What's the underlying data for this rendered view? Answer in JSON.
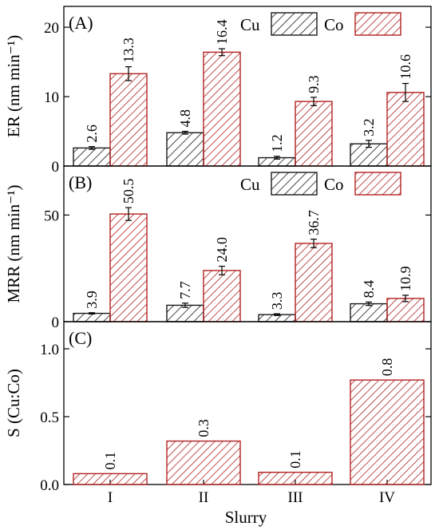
{
  "chart_data": {
    "type": "bar",
    "categories": [
      "I",
      "II",
      "III",
      "IV"
    ],
    "xlabel": "Slurry",
    "colors": {
      "cu": "#1a1a1a",
      "co": "#b22222"
    },
    "panels": [
      {
        "label": "(A)",
        "ylabel": "ER (nm min⁻¹)",
        "ylim": [
          0,
          23
        ],
        "yticks": [
          "0",
          "10",
          "20"
        ],
        "legend": [
          "Cu",
          "Co"
        ],
        "legend_position": "top-right",
        "series": [
          {
            "name": "Cu",
            "values": [
              2.6,
              4.8,
              1.2,
              3.2
            ],
            "errors": [
              0.2,
              0.2,
              0.2,
              0.5
            ],
            "labels": [
              "2.6",
              "4.8",
              "1.2",
              "3.2"
            ]
          },
          {
            "name": "Co",
            "values": [
              13.3,
              16.4,
              9.3,
              10.6
            ],
            "errors": [
              1.0,
              0.5,
              0.6,
              1.3
            ],
            "labels": [
              "13.3",
              "16.4",
              "9.3",
              "10.6"
            ]
          }
        ]
      },
      {
        "label": "(B)",
        "ylabel": "MRR (nm min⁻¹)",
        "ylim": [
          0,
          73
        ],
        "yticks": [
          "0",
          "50"
        ],
        "legend": [
          "Cu",
          "Co"
        ],
        "legend_position": "top-right",
        "series": [
          {
            "name": "Cu",
            "values": [
              3.9,
              7.7,
              3.3,
              8.4
            ],
            "errors": [
              0.3,
              1.0,
              0.4,
              0.8
            ],
            "labels": [
              "3.9",
              "7.7",
              "3.3",
              "8.4"
            ]
          },
          {
            "name": "Co",
            "values": [
              50.5,
              24.0,
              36.7,
              10.9
            ],
            "errors": [
              3.0,
              2.0,
              2.0,
              1.5
            ],
            "labels": [
              "50.5",
              "24.0",
              "36.7",
              "10.9"
            ]
          }
        ]
      },
      {
        "label": "(C)",
        "ylabel": "S (Cu:Co)",
        "ylim": [
          0,
          1.2
        ],
        "yticks": [
          "0.0",
          "0.5",
          "1.0"
        ],
        "series": [
          {
            "name": "S",
            "values": [
              0.08,
              0.32,
              0.09,
              0.77
            ],
            "labels": [
              "0.1",
              "0.3",
              "0.1",
              "0.8"
            ]
          }
        ]
      }
    ]
  }
}
